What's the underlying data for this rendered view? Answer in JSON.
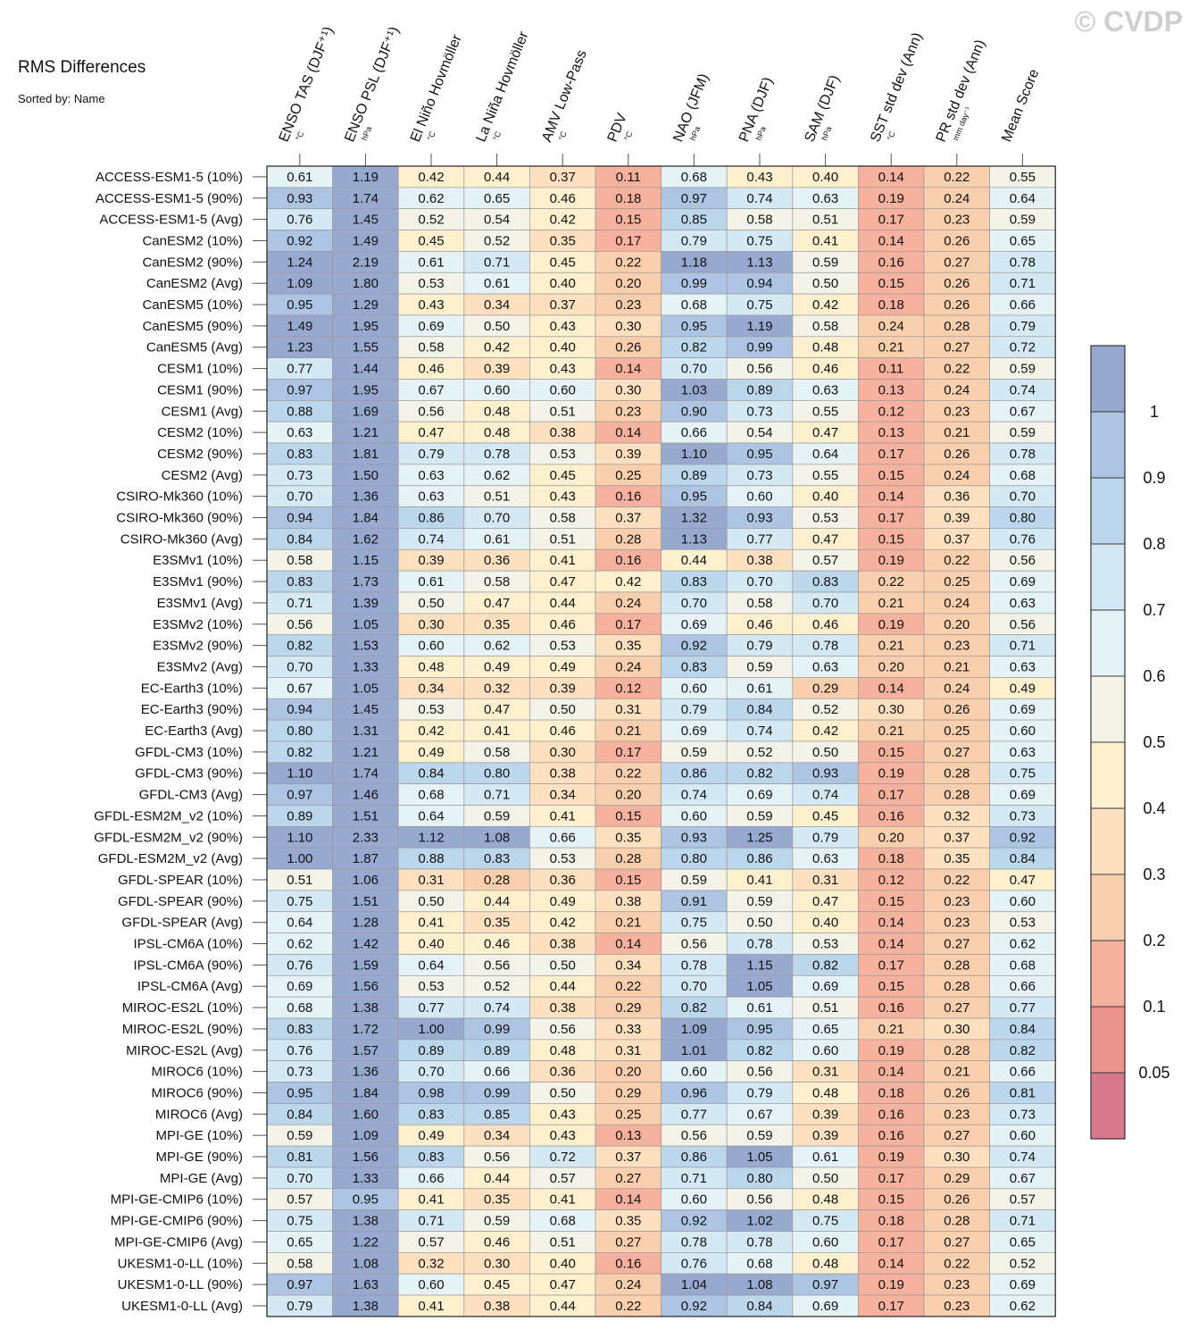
{
  "watermark": "© CVDP",
  "title": "RMS Differences",
  "subtitle": "Sorted by: Name",
  "chart_data": {
    "type": "heatmap",
    "columns": [
      {
        "label": "ENSO TAS (DJF⁺¹)",
        "unit": "°C"
      },
      {
        "label": "ENSO PSL (DJF⁺¹)",
        "unit": "hPa"
      },
      {
        "label": "El Niño Hovmöller",
        "unit": "°C"
      },
      {
        "label": "La Niña Hovmöller",
        "unit": "°C"
      },
      {
        "label": "AMV Low-Pass",
        "unit": "°C"
      },
      {
        "label": "PDV",
        "unit": "°C"
      },
      {
        "label": "NAO (JFM)",
        "unit": "hPa"
      },
      {
        "label": "PNA (DJF)",
        "unit": "hPa"
      },
      {
        "label": "SAM (DJF)",
        "unit": "hPa"
      },
      {
        "label": "SST std dev (Ann)",
        "unit": "°C"
      },
      {
        "label": "PR std dev (Ann)",
        "unit": "mm day⁻¹"
      },
      {
        "label": "Mean Score",
        "unit": ""
      }
    ],
    "rows": [
      {
        "name": "ACCESS-ESM1-5 (10%)",
        "values": [
          0.61,
          1.19,
          0.42,
          0.44,
          0.37,
          0.11,
          0.68,
          0.43,
          0.4,
          0.14,
          0.22,
          0.55
        ]
      },
      {
        "name": "ACCESS-ESM1-5 (90%)",
        "values": [
          0.93,
          1.74,
          0.62,
          0.65,
          0.46,
          0.18,
          0.97,
          0.74,
          0.63,
          0.19,
          0.24,
          0.64
        ]
      },
      {
        "name": "ACCESS-ESM1-5 (Avg)",
        "values": [
          0.76,
          1.45,
          0.52,
          0.54,
          0.42,
          0.15,
          0.85,
          0.58,
          0.51,
          0.17,
          0.23,
          0.59
        ]
      },
      {
        "name": "CanESM2 (10%)",
        "values": [
          0.92,
          1.49,
          0.45,
          0.52,
          0.35,
          0.17,
          0.79,
          0.75,
          0.41,
          0.14,
          0.26,
          0.65
        ]
      },
      {
        "name": "CanESM2 (90%)",
        "values": [
          1.24,
          2.19,
          0.61,
          0.71,
          0.45,
          0.22,
          1.18,
          1.13,
          0.59,
          0.16,
          0.27,
          0.78
        ]
      },
      {
        "name": "CanESM2 (Avg)",
        "values": [
          1.09,
          1.8,
          0.53,
          0.61,
          0.4,
          0.2,
          0.99,
          0.94,
          0.5,
          0.15,
          0.26,
          0.71
        ]
      },
      {
        "name": "CanESM5 (10%)",
        "values": [
          0.95,
          1.29,
          0.43,
          0.34,
          0.37,
          0.23,
          0.68,
          0.75,
          0.42,
          0.18,
          0.26,
          0.66
        ]
      },
      {
        "name": "CanESM5 (90%)",
        "values": [
          1.49,
          1.95,
          0.69,
          0.5,
          0.43,
          0.3,
          0.95,
          1.19,
          0.58,
          0.24,
          0.28,
          0.79
        ]
      },
      {
        "name": "CanESM5 (Avg)",
        "values": [
          1.23,
          1.55,
          0.58,
          0.42,
          0.4,
          0.26,
          0.82,
          0.99,
          0.48,
          0.21,
          0.27,
          0.72
        ]
      },
      {
        "name": "CESM1 (10%)",
        "values": [
          0.77,
          1.44,
          0.46,
          0.39,
          0.43,
          0.14,
          0.7,
          0.56,
          0.46,
          0.11,
          0.22,
          0.59
        ]
      },
      {
        "name": "CESM1 (90%)",
        "values": [
          0.97,
          1.95,
          0.67,
          0.6,
          0.6,
          0.3,
          1.03,
          0.89,
          0.63,
          0.13,
          0.24,
          0.74
        ]
      },
      {
        "name": "CESM1 (Avg)",
        "values": [
          0.88,
          1.69,
          0.56,
          0.48,
          0.51,
          0.23,
          0.9,
          0.73,
          0.55,
          0.12,
          0.23,
          0.67
        ]
      },
      {
        "name": "CESM2 (10%)",
        "values": [
          0.63,
          1.21,
          0.47,
          0.48,
          0.38,
          0.14,
          0.66,
          0.54,
          0.47,
          0.13,
          0.21,
          0.59
        ]
      },
      {
        "name": "CESM2 (90%)",
        "values": [
          0.83,
          1.81,
          0.79,
          0.78,
          0.53,
          0.39,
          1.1,
          0.95,
          0.64,
          0.17,
          0.26,
          0.78
        ]
      },
      {
        "name": "CESM2 (Avg)",
        "values": [
          0.73,
          1.5,
          0.63,
          0.62,
          0.45,
          0.25,
          0.89,
          0.73,
          0.55,
          0.15,
          0.24,
          0.68
        ]
      },
      {
        "name": "CSIRO-Mk360 (10%)",
        "values": [
          0.7,
          1.36,
          0.63,
          0.51,
          0.43,
          0.16,
          0.95,
          0.6,
          0.4,
          0.14,
          0.36,
          0.7
        ]
      },
      {
        "name": "CSIRO-Mk360 (90%)",
        "values": [
          0.94,
          1.84,
          0.86,
          0.7,
          0.58,
          0.37,
          1.32,
          0.93,
          0.53,
          0.17,
          0.39,
          0.8
        ]
      },
      {
        "name": "CSIRO-Mk360 (Avg)",
        "values": [
          0.84,
          1.62,
          0.74,
          0.61,
          0.51,
          0.28,
          1.13,
          0.77,
          0.47,
          0.15,
          0.37,
          0.76
        ]
      },
      {
        "name": "E3SMv1 (10%)",
        "values": [
          0.58,
          1.15,
          0.39,
          0.36,
          0.41,
          0.16,
          0.44,
          0.38,
          0.57,
          0.19,
          0.22,
          0.56
        ]
      },
      {
        "name": "E3SMv1 (90%)",
        "values": [
          0.83,
          1.73,
          0.61,
          0.58,
          0.47,
          0.42,
          0.83,
          0.7,
          0.83,
          0.22,
          0.25,
          0.69
        ]
      },
      {
        "name": "E3SMv1 (Avg)",
        "values": [
          0.71,
          1.39,
          0.5,
          0.47,
          0.44,
          0.24,
          0.7,
          0.58,
          0.7,
          0.21,
          0.24,
          0.63
        ]
      },
      {
        "name": "E3SMv2 (10%)",
        "values": [
          0.56,
          1.05,
          0.3,
          0.35,
          0.46,
          0.17,
          0.69,
          0.46,
          0.46,
          0.19,
          0.2,
          0.56
        ]
      },
      {
        "name": "E3SMv2 (90%)",
        "values": [
          0.82,
          1.53,
          0.6,
          0.62,
          0.53,
          0.35,
          0.92,
          0.79,
          0.78,
          0.21,
          0.23,
          0.71
        ]
      },
      {
        "name": "E3SMv2 (Avg)",
        "values": [
          0.7,
          1.33,
          0.48,
          0.49,
          0.49,
          0.24,
          0.83,
          0.59,
          0.63,
          0.2,
          0.21,
          0.63
        ]
      },
      {
        "name": "EC-Earth3 (10%)",
        "values": [
          0.67,
          1.05,
          0.34,
          0.32,
          0.39,
          0.12,
          0.6,
          0.61,
          0.29,
          0.14,
          0.24,
          0.49
        ]
      },
      {
        "name": "EC-Earth3 (90%)",
        "values": [
          0.94,
          1.45,
          0.53,
          0.47,
          0.5,
          0.31,
          0.79,
          0.84,
          0.52,
          0.3,
          0.26,
          0.69
        ]
      },
      {
        "name": "EC-Earth3 (Avg)",
        "values": [
          0.8,
          1.31,
          0.42,
          0.41,
          0.46,
          0.21,
          0.69,
          0.74,
          0.42,
          0.21,
          0.25,
          0.6
        ]
      },
      {
        "name": "GFDL-CM3 (10%)",
        "values": [
          0.82,
          1.21,
          0.49,
          0.58,
          0.3,
          0.17,
          0.59,
          0.52,
          0.5,
          0.15,
          0.27,
          0.63
        ]
      },
      {
        "name": "GFDL-CM3 (90%)",
        "values": [
          1.1,
          1.74,
          0.84,
          0.8,
          0.38,
          0.22,
          0.86,
          0.82,
          0.93,
          0.19,
          0.28,
          0.75
        ]
      },
      {
        "name": "GFDL-CM3 (Avg)",
        "values": [
          0.97,
          1.46,
          0.68,
          0.71,
          0.34,
          0.2,
          0.74,
          0.69,
          0.74,
          0.17,
          0.28,
          0.69
        ]
      },
      {
        "name": "GFDL-ESM2M_v2 (10%)",
        "values": [
          0.89,
          1.51,
          0.64,
          0.59,
          0.41,
          0.15,
          0.6,
          0.59,
          0.45,
          0.16,
          0.32,
          0.73
        ]
      },
      {
        "name": "GFDL-ESM2M_v2 (90%)",
        "values": [
          1.1,
          2.33,
          1.12,
          1.08,
          0.66,
          0.35,
          0.93,
          1.25,
          0.79,
          0.2,
          0.37,
          0.92
        ]
      },
      {
        "name": "GFDL-ESM2M_v2 (Avg)",
        "values": [
          1.0,
          1.87,
          0.88,
          0.83,
          0.53,
          0.28,
          0.8,
          0.86,
          0.63,
          0.18,
          0.35,
          0.84
        ]
      },
      {
        "name": "GFDL-SPEAR (10%)",
        "values": [
          0.51,
          1.06,
          0.31,
          0.28,
          0.36,
          0.15,
          0.59,
          0.41,
          0.31,
          0.12,
          0.22,
          0.47
        ]
      },
      {
        "name": "GFDL-SPEAR (90%)",
        "values": [
          0.75,
          1.51,
          0.5,
          0.44,
          0.49,
          0.38,
          0.91,
          0.59,
          0.47,
          0.15,
          0.23,
          0.6
        ]
      },
      {
        "name": "GFDL-SPEAR (Avg)",
        "values": [
          0.64,
          1.28,
          0.41,
          0.35,
          0.42,
          0.21,
          0.75,
          0.5,
          0.4,
          0.14,
          0.23,
          0.53
        ]
      },
      {
        "name": "IPSL-CM6A (10%)",
        "values": [
          0.62,
          1.42,
          0.4,
          0.46,
          0.38,
          0.14,
          0.56,
          0.78,
          0.53,
          0.14,
          0.27,
          0.62
        ]
      },
      {
        "name": "IPSL-CM6A (90%)",
        "values": [
          0.76,
          1.59,
          0.64,
          0.56,
          0.5,
          0.34,
          0.78,
          1.15,
          0.82,
          0.17,
          0.28,
          0.68
        ]
      },
      {
        "name": "IPSL-CM6A (Avg)",
        "values": [
          0.69,
          1.56,
          0.53,
          0.52,
          0.44,
          0.22,
          0.7,
          1.05,
          0.69,
          0.15,
          0.28,
          0.66
        ]
      },
      {
        "name": "MIROC-ES2L (10%)",
        "values": [
          0.68,
          1.38,
          0.77,
          0.74,
          0.38,
          0.29,
          0.82,
          0.61,
          0.51,
          0.16,
          0.27,
          0.77
        ]
      },
      {
        "name": "MIROC-ES2L (90%)",
        "values": [
          0.83,
          1.72,
          1.0,
          0.99,
          0.56,
          0.33,
          1.09,
          0.95,
          0.65,
          0.21,
          0.3,
          0.84
        ]
      },
      {
        "name": "MIROC-ES2L (Avg)",
        "values": [
          0.76,
          1.57,
          0.89,
          0.89,
          0.48,
          0.31,
          1.01,
          0.82,
          0.6,
          0.19,
          0.28,
          0.82
        ]
      },
      {
        "name": "MIROC6 (10%)",
        "values": [
          0.73,
          1.36,
          0.7,
          0.66,
          0.36,
          0.2,
          0.6,
          0.56,
          0.31,
          0.14,
          0.21,
          0.66
        ]
      },
      {
        "name": "MIROC6 (90%)",
        "values": [
          0.95,
          1.84,
          0.98,
          0.99,
          0.5,
          0.29,
          0.96,
          0.79,
          0.48,
          0.18,
          0.26,
          0.81
        ]
      },
      {
        "name": "MIROC6 (Avg)",
        "values": [
          0.84,
          1.6,
          0.83,
          0.85,
          0.43,
          0.25,
          0.77,
          0.67,
          0.39,
          0.16,
          0.23,
          0.73
        ]
      },
      {
        "name": "MPI-GE (10%)",
        "values": [
          0.59,
          1.09,
          0.49,
          0.34,
          0.43,
          0.13,
          0.56,
          0.59,
          0.39,
          0.16,
          0.27,
          0.6
        ]
      },
      {
        "name": "MPI-GE (90%)",
        "values": [
          0.81,
          1.56,
          0.83,
          0.56,
          0.72,
          0.37,
          0.86,
          1.05,
          0.61,
          0.19,
          0.3,
          0.74
        ]
      },
      {
        "name": "MPI-GE (Avg)",
        "values": [
          0.7,
          1.33,
          0.66,
          0.44,
          0.57,
          0.27,
          0.71,
          0.8,
          0.5,
          0.17,
          0.29,
          0.67
        ]
      },
      {
        "name": "MPI-GE-CMIP6 (10%)",
        "values": [
          0.57,
          0.95,
          0.41,
          0.35,
          0.41,
          0.14,
          0.6,
          0.56,
          0.48,
          0.15,
          0.26,
          0.57
        ]
      },
      {
        "name": "MPI-GE-CMIP6 (90%)",
        "values": [
          0.75,
          1.38,
          0.71,
          0.59,
          0.68,
          0.35,
          0.92,
          1.02,
          0.75,
          0.18,
          0.28,
          0.71
        ]
      },
      {
        "name": "MPI-GE-CMIP6 (Avg)",
        "values": [
          0.65,
          1.22,
          0.57,
          0.46,
          0.51,
          0.27,
          0.78,
          0.78,
          0.6,
          0.17,
          0.27,
          0.65
        ]
      },
      {
        "name": "UKESM1-0-LL (10%)",
        "values": [
          0.58,
          1.08,
          0.32,
          0.3,
          0.4,
          0.16,
          0.76,
          0.68,
          0.48,
          0.14,
          0.22,
          0.52
        ]
      },
      {
        "name": "UKESM1-0-LL (90%)",
        "values": [
          0.97,
          1.63,
          0.6,
          0.45,
          0.47,
          0.24,
          1.04,
          1.08,
          0.97,
          0.19,
          0.23,
          0.69
        ]
      },
      {
        "name": "UKESM1-0-LL (Avg)",
        "values": [
          0.79,
          1.38,
          0.41,
          0.38,
          0.44,
          0.22,
          0.92,
          0.84,
          0.69,
          0.17,
          0.23,
          0.62
        ]
      }
    ],
    "colorbar": {
      "labels": [
        "1",
        "0.9",
        "0.8",
        "0.7",
        "0.6",
        "0.5",
        "0.4",
        "0.3",
        "0.2",
        "0.1",
        "0.05"
      ],
      "bounds": [
        0.05,
        0.1,
        0.2,
        0.3,
        0.4,
        0.5,
        0.6,
        0.7,
        0.8,
        0.9,
        1
      ],
      "colors_high_to_low": [
        "#98a9d0",
        "#adc5e2",
        "#bcd7eb",
        "#d4e9f3",
        "#e6f3f6",
        "#f3f3e9",
        "#fdf0cf",
        "#fde0bf",
        "#facfae",
        "#f6b29e",
        "#eb938f",
        "#d8788c"
      ]
    }
  }
}
